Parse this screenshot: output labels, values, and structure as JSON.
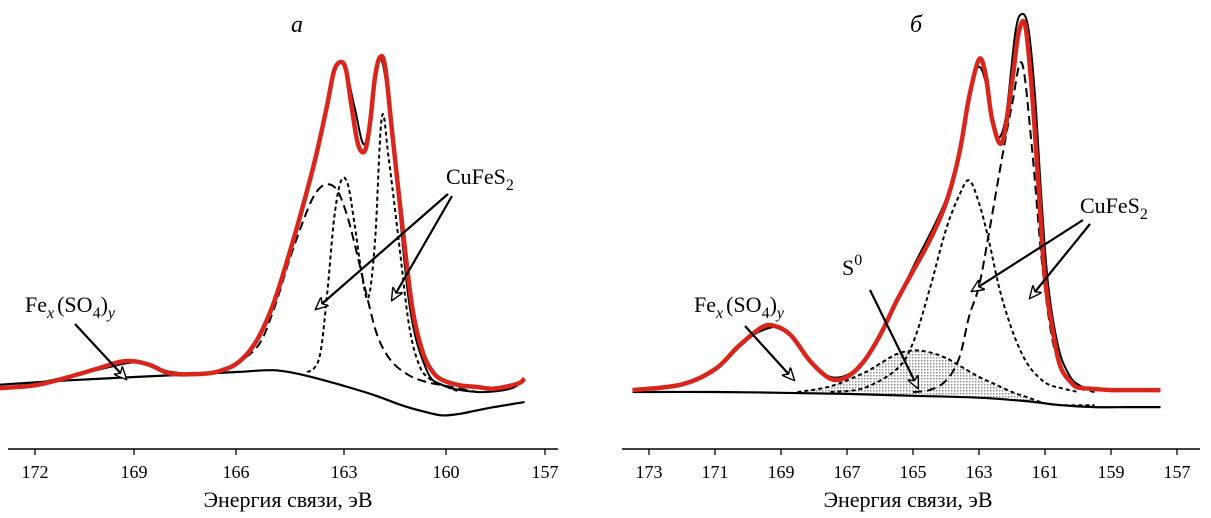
{
  "figure": {
    "panels": [
      {
        "label": "а",
        "xlabel": "Энергия связи, эВ",
        "ticks": [
          "172",
          "169",
          "166",
          "163",
          "160",
          "157"
        ],
        "annotations": {
          "sulfate": {
            "base": "Fe",
            "sub1": "x",
            "mid": "(SO",
            "sub2": "4",
            "close": ")",
            "sub3": "y"
          },
          "chalcopyrite": {
            "base": "CuFeS",
            "sub": "2"
          }
        }
      },
      {
        "label": "б",
        "xlabel": "Энергия связи, эВ",
        "ticks": [
          "173",
          "171",
          "169",
          "167",
          "165",
          "163",
          "161",
          "159",
          "157"
        ],
        "annotations": {
          "sulfate": {
            "base": "Fe",
            "sub1": "x",
            "mid": "(SO",
            "sub2": "4",
            "close": ")",
            "sub3": "y"
          },
          "chalcopyrite": {
            "base": "CuFeS",
            "sub": "2"
          },
          "sulfur": {
            "base": "S",
            "sup": "0"
          }
        }
      }
    ]
  },
  "chart_data": [
    {
      "type": "line",
      "title": "а",
      "xlabel": "Энергия связи, эВ",
      "ylabel": "",
      "xlim": [
        173,
        156
      ],
      "xticks": [
        172,
        169,
        166,
        163,
        160,
        157
      ],
      "y_axis_shown": false,
      "colors": {
        "experimental": "#d9261c",
        "envelope": "#000000",
        "components": "#000000"
      },
      "series": [
        {
          "style": "solid-red",
          "x": [
            173.3,
            172,
            171,
            170,
            169.5,
            169.1,
            168.6,
            168,
            167,
            166.5,
            166,
            165.5,
            165,
            164.5,
            164,
            163.7,
            163.4,
            163.2,
            163.0,
            162.85,
            162.7,
            162.5,
            162.3,
            162.15,
            162.0,
            161.85,
            161.7,
            161.5,
            161.2,
            160.9,
            160.6,
            160.3,
            160,
            159.5,
            159,
            158.5,
            157.8,
            157.6
          ],
          "y": [
            0.01,
            0.02,
            0.045,
            0.075,
            0.09,
            0.092,
            0.08,
            0.055,
            0.055,
            0.065,
            0.09,
            0.15,
            0.26,
            0.42,
            0.6,
            0.72,
            0.86,
            0.96,
            0.985,
            0.96,
            0.86,
            0.74,
            0.72,
            0.8,
            0.94,
            1.0,
            0.97,
            0.78,
            0.5,
            0.25,
            0.12,
            0.06,
            0.035,
            0.02,
            0.015,
            0.01,
            0.025,
            0.04
          ]
        },
        {
          "style": "thin-black",
          "x": [
            173.3,
            172,
            170,
            169,
            168,
            167,
            166,
            165,
            164,
            163.5,
            163.2,
            162.9,
            162.6,
            162.3,
            162.0,
            161.8,
            161.5,
            161.0,
            160.5,
            160,
            159,
            158,
            157.6
          ],
          "y": [
            0.01,
            0.025,
            0.07,
            0.088,
            0.06,
            0.055,
            0.09,
            0.26,
            0.6,
            0.82,
            0.955,
            0.975,
            0.85,
            0.74,
            0.92,
            0.99,
            0.78,
            0.27,
            0.07,
            0.02,
            0.0,
            0.01,
            0.04
          ]
        },
        {
          "style": "dashed-black",
          "label": "CuFeS2",
          "x": [
            166.5,
            165.5,
            165,
            164.5,
            164,
            163.7,
            163.4,
            163.1,
            162.8,
            162.5,
            162.2,
            161.9,
            161.5,
            161.0,
            160.5,
            160,
            159.5,
            159
          ],
          "y": [
            0.06,
            0.13,
            0.24,
            0.4,
            0.54,
            0.6,
            0.62,
            0.6,
            0.52,
            0.4,
            0.27,
            0.16,
            0.09,
            0.05,
            0.03,
            0.02,
            0.01,
            0.0
          ]
        },
        {
          "style": "short-dashed-black",
          "label": "CuFeS2",
          "x": [
            164.0,
            163.8,
            163.6,
            163.4,
            163.2,
            163.0,
            162.8,
            162.6,
            162.4,
            162.2,
            162.0,
            161.8,
            161.6,
            161.3,
            161.0,
            160.7,
            160.4,
            160.0,
            159.5
          ],
          "y": [
            0.06,
            0.07,
            0.12,
            0.3,
            0.52,
            0.63,
            0.62,
            0.5,
            0.36,
            0.28,
            0.45,
            0.82,
            0.7,
            0.45,
            0.2,
            0.08,
            0.04,
            0.02,
            0.0
          ]
        },
        {
          "style": "background-black",
          "x": [
            173.3,
            171,
            169,
            167,
            166,
            165,
            164.3,
            163.5,
            162.8,
            162.0,
            161.2,
            160.5,
            160.0,
            159.5,
            159,
            158.5,
            157.6
          ],
          "y": [
            0.02,
            0.035,
            0.045,
            0.055,
            0.06,
            0.065,
            0.055,
            0.035,
            0.015,
            -0.01,
            -0.04,
            -0.06,
            -0.07,
            -0.065,
            -0.055,
            -0.045,
            -0.03
          ]
        }
      ],
      "annotations": [
        "Fex(SO4)y",
        "CuFeS2"
      ]
    },
    {
      "type": "line",
      "title": "б",
      "xlabel": "Энергия связи, эВ",
      "ylabel": "",
      "xlim": [
        174,
        156.5
      ],
      "xticks": [
        173,
        171,
        169,
        167,
        165,
        163,
        161,
        159,
        157
      ],
      "y_axis_shown": false,
      "colors": {
        "experimental": "#d9261c",
        "envelope": "#000000",
        "components": "#000000",
        "s0_fill": "#9a9a9a"
      },
      "series": [
        {
          "style": "solid-red",
          "x": [
            173.5,
            172,
            171,
            170.3,
            169.6,
            169.2,
            168.7,
            168.1,
            167.5,
            167,
            166.5,
            166,
            165.5,
            165,
            164.5,
            164,
            163.6,
            163.3,
            163.0,
            162.8,
            162.6,
            162.3,
            162.0,
            161.8,
            161.6,
            161.4,
            161.2,
            161.0,
            160.7,
            160.5,
            160.2,
            160,
            159.5,
            159,
            158.5,
            157.5
          ],
          "y": [
            0.005,
            0.02,
            0.06,
            0.12,
            0.17,
            0.175,
            0.15,
            0.08,
            0.035,
            0.04,
            0.08,
            0.15,
            0.24,
            0.32,
            0.4,
            0.5,
            0.63,
            0.78,
            0.88,
            0.84,
            0.72,
            0.66,
            0.82,
            0.95,
            0.97,
            0.8,
            0.55,
            0.3,
            0.13,
            0.06,
            0.025,
            0.012,
            0.008,
            0.005,
            0.005,
            0.005
          ]
        },
        {
          "style": "thin-black",
          "x": [
            173.5,
            172,
            171,
            170,
            169.5,
            169,
            168.5,
            168,
            167.5,
            167,
            166.5,
            166,
            165,
            164,
            163.5,
            163.2,
            163.0,
            162.8,
            162.5,
            162.2,
            161.9,
            161.7,
            161.5,
            161.3,
            161.1,
            160.9,
            160.6,
            160.3,
            160,
            159.5,
            158,
            157.5
          ],
          "y": [
            0.005,
            0.02,
            0.06,
            0.14,
            0.165,
            0.17,
            0.13,
            0.07,
            0.04,
            0.045,
            0.08,
            0.15,
            0.33,
            0.51,
            0.68,
            0.82,
            0.86,
            0.82,
            0.68,
            0.72,
            0.95,
            1.0,
            0.96,
            0.78,
            0.5,
            0.28,
            0.12,
            0.05,
            0.02,
            0.008,
            0.005,
            0.005
          ]
        },
        {
          "style": "dashed-black",
          "label": "CuFeS2",
          "x": [
            165.0,
            164.5,
            164.0,
            163.6,
            163.3,
            163.0,
            162.7,
            162.3,
            162.0,
            161.7,
            161.4,
            161.1,
            160.8,
            160.5,
            160.2,
            160.0,
            159.5
          ],
          "y": [
            0.0,
            0.005,
            0.03,
            0.09,
            0.2,
            0.28,
            0.42,
            0.62,
            0.76,
            0.87,
            0.65,
            0.35,
            0.15,
            0.06,
            0.02,
            0.01,
            0.0
          ]
        },
        {
          "style": "short-dashed-black",
          "label": "CuFeS2",
          "x": [
            167.5,
            166.5,
            165.5,
            165.0,
            164.5,
            164.0,
            163.6,
            163.3,
            163.0,
            162.7,
            162.4,
            162.1,
            161.8,
            161.5,
            161.2,
            160.9,
            160.5,
            160.0
          ],
          "y": [
            0.0,
            0.01,
            0.06,
            0.13,
            0.27,
            0.43,
            0.52,
            0.56,
            0.5,
            0.4,
            0.28,
            0.19,
            0.12,
            0.07,
            0.04,
            0.02,
            0.01,
            0.0
          ]
        },
        {
          "style": "filled-dotted-black",
          "label": "S0",
          "x": [
            168.5,
            167.5,
            166.5,
            166.0,
            165.5,
            165.0,
            164.5,
            164.0,
            163.5,
            163.0,
            162.5,
            162.0,
            161.5,
            161.0,
            160.5,
            160.0,
            159.5
          ],
          "y": [
            0.0,
            0.015,
            0.05,
            0.075,
            0.1,
            0.11,
            0.105,
            0.09,
            0.065,
            0.04,
            0.02,
            0.0,
            -0.015,
            -0.03,
            -0.035,
            -0.035,
            -0.035
          ]
        },
        {
          "style": "background-black",
          "x": [
            173.5,
            171,
            169,
            167,
            165,
            163,
            161.5,
            160.5,
            159.5,
            158.5,
            157.5
          ],
          "y": [
            0.0,
            0.0,
            -0.002,
            -0.005,
            -0.01,
            -0.015,
            -0.025,
            -0.035,
            -0.04,
            -0.04,
            -0.04
          ]
        }
      ],
      "annotations": [
        "Fex(SO4)y",
        "S0",
        "CuFeS2"
      ]
    }
  ]
}
